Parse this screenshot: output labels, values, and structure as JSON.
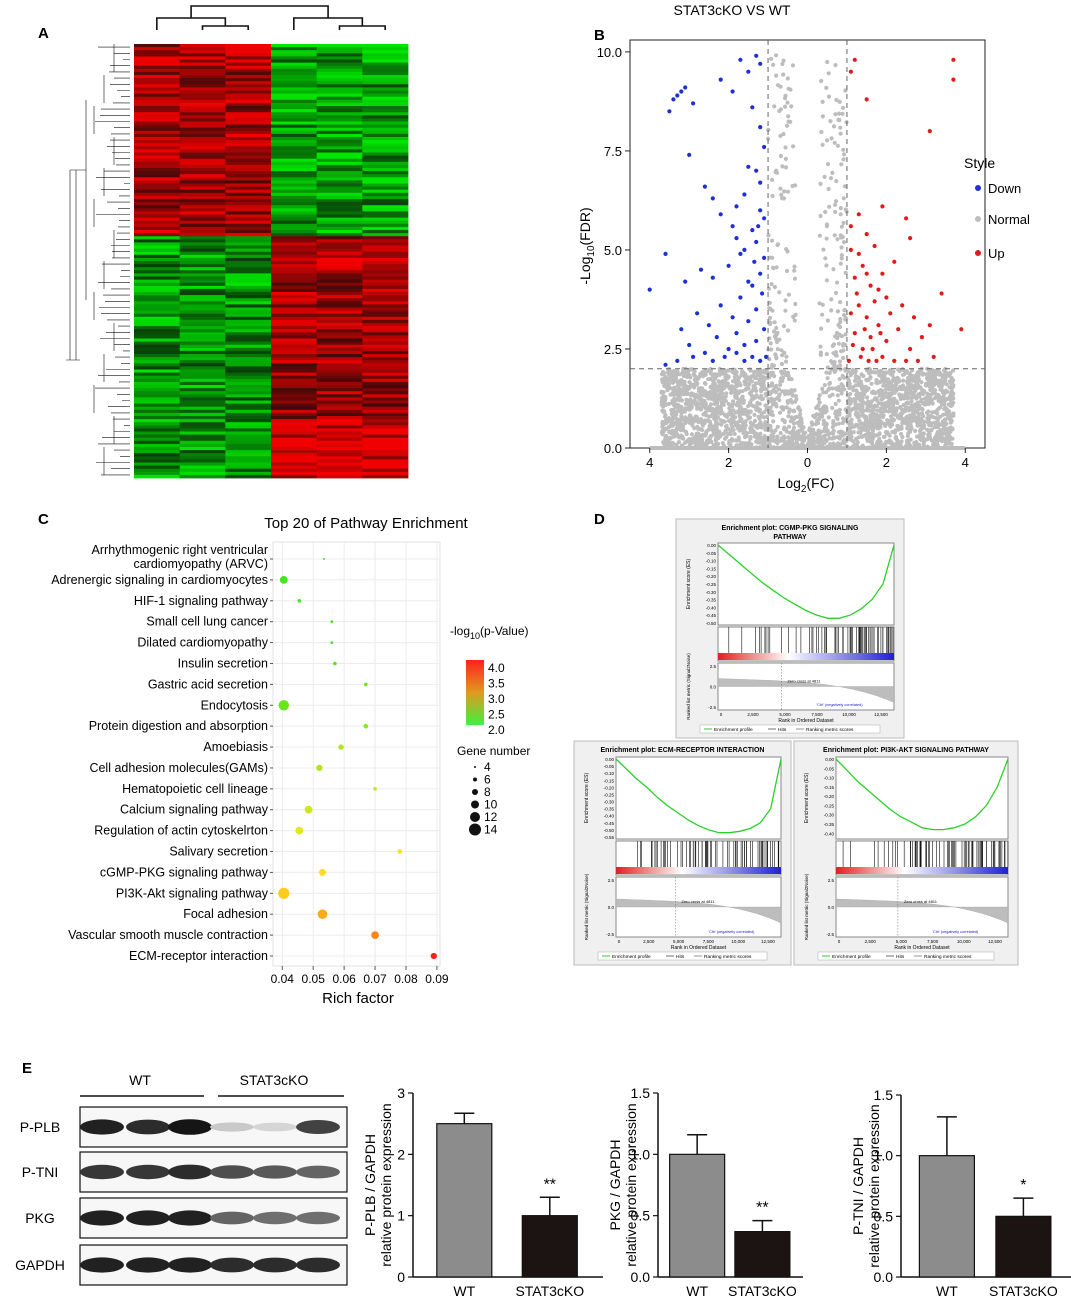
{
  "panel_letters": {
    "a": "A",
    "b": "B",
    "c": "C",
    "d": "D",
    "e": "E"
  },
  "colors": {
    "down": "#1f2fd6",
    "normal": "#bdbdbd",
    "up": "#e21a1a",
    "heat_red": "#e01414",
    "heat_green": "#1fd11f",
    "gsea_line": "#2ad02a",
    "wt_bar": "#8c8c8c",
    "ko_bar": "#1c1412"
  },
  "chart_data": [
    {
      "id": "heatmap",
      "type": "heatmap",
      "title": "",
      "columns": 6,
      "groups": [
        "cols 1-3",
        "cols 4-6"
      ],
      "description_values": "row-clustered expression blocks: upper block high in cols 1-3, lower block high in cols 4-6"
    },
    {
      "id": "volcano",
      "type": "scatter",
      "title": "STAT3cKO  VS  WT",
      "xlabel_main": "Log",
      "xlabel_sub": "2",
      "xlabel_end": "(FC)",
      "ylabel_main": "-Log",
      "ylabel_sub": "10",
      "ylabel_end": "(FDR)",
      "xlim": [
        -4.5,
        4.5
      ],
      "ylim": [
        0,
        10.3
      ],
      "x_ticks": [
        -4,
        -2,
        0,
        2,
        4
      ],
      "x_tick_labels": [
        "4",
        "2",
        "0",
        "2",
        "4"
      ],
      "y_ticks": [
        0,
        2.5,
        5,
        7.5,
        10
      ],
      "y_tick_labels": [
        "0.0",
        "2.5",
        "5.0",
        "7.5",
        "10.0"
      ],
      "fc_threshold": 1,
      "fdr_threshold": 2,
      "legend_title": "Style",
      "legend": [
        "Down",
        "Normal",
        "Up"
      ],
      "down_points": [
        [
          -3.4,
          8.8
        ],
        [
          -3.3,
          8.9
        ],
        [
          -3.2,
          9.0
        ],
        [
          -3.1,
          9.1
        ],
        [
          -2.9,
          8.7
        ],
        [
          -3.5,
          8.5
        ],
        [
          -1.7,
          9.8
        ],
        [
          -1.5,
          9.5
        ],
        [
          -1.3,
          9.9
        ],
        [
          -1.2,
          9.7
        ],
        [
          -2.2,
          9.3
        ],
        [
          -1.9,
          9.0
        ],
        [
          -3.0,
          7.4
        ],
        [
          -2.6,
          6.6
        ],
        [
          -2.4,
          6.3
        ],
        [
          -2.2,
          5.9
        ],
        [
          -1.8,
          6.1
        ],
        [
          -1.6,
          6.4
        ],
        [
          -1.5,
          7.1
        ],
        [
          -1.3,
          7.0
        ],
        [
          -1.2,
          6.7
        ],
        [
          -1.1,
          7.6
        ],
        [
          -1.4,
          8.6
        ],
        [
          -1.2,
          8.1
        ],
        [
          -3.6,
          4.9
        ],
        [
          -3.1,
          4.2
        ],
        [
          -2.7,
          4.5
        ],
        [
          -2.4,
          4.3
        ],
        [
          -2.0,
          4.6
        ],
        [
          -1.8,
          5.3
        ],
        [
          -1.6,
          5.0
        ],
        [
          -1.4,
          5.5
        ],
        [
          -1.3,
          5.2
        ],
        [
          -1.1,
          5.8
        ],
        [
          -1.2,
          6.0
        ],
        [
          -4.0,
          4.0
        ],
        [
          -3.2,
          3.0
        ],
        [
          -3.0,
          2.6
        ],
        [
          -2.8,
          3.4
        ],
        [
          -2.6,
          2.4
        ],
        [
          -2.5,
          3.1
        ],
        [
          -2.3,
          2.8
        ],
        [
          -2.2,
          3.6
        ],
        [
          -2.0,
          2.5
        ],
        [
          -1.9,
          3.3
        ],
        [
          -1.8,
          2.9
        ],
        [
          -1.7,
          3.8
        ],
        [
          -1.6,
          2.6
        ],
        [
          -1.5,
          3.2
        ],
        [
          -1.4,
          4.1
        ],
        [
          -1.3,
          2.7
        ],
        [
          -1.3,
          3.5
        ],
        [
          -1.2,
          4.4
        ],
        [
          -1.1,
          3.0
        ],
        [
          -1.05,
          2.3
        ],
        [
          -1.1,
          4.8
        ],
        [
          -1.2,
          2.2
        ],
        [
          -1.4,
          2.3
        ],
        [
          -1.6,
          2.2
        ],
        [
          -1.8,
          2.4
        ],
        [
          -2.1,
          2.3
        ],
        [
          -2.4,
          2.2
        ],
        [
          -2.9,
          2.3
        ],
        [
          -3.3,
          2.2
        ],
        [
          -3.6,
          2.1
        ],
        [
          -1.15,
          3.9
        ],
        [
          -1.25,
          5.6
        ],
        [
          -1.35,
          4.7
        ],
        [
          -1.5,
          4.2
        ],
        [
          -1.7,
          4.9
        ],
        [
          -1.9,
          5.6
        ]
      ],
      "up_points": [
        [
          3.7,
          9.8
        ],
        [
          3.7,
          9.3
        ],
        [
          3.1,
          8.0
        ],
        [
          1.2,
          9.8
        ],
        [
          1.1,
          9.5
        ],
        [
          1.5,
          8.8
        ],
        [
          1.9,
          6.1
        ],
        [
          2.5,
          5.8
        ],
        [
          2.6,
          5.3
        ],
        [
          1.1,
          5.6
        ],
        [
          1.3,
          5.9
        ],
        [
          1.5,
          5.4
        ],
        [
          1.7,
          5.1
        ],
        [
          2.2,
          4.7
        ],
        [
          1.9,
          4.4
        ],
        [
          1.6,
          4.1
        ],
        [
          1.4,
          4.6
        ],
        [
          1.2,
          4.3
        ],
        [
          1.1,
          5.0
        ],
        [
          3.4,
          3.9
        ],
        [
          2.4,
          3.6
        ],
        [
          2.7,
          3.3
        ],
        [
          3.1,
          3.1
        ],
        [
          2.9,
          2.8
        ],
        [
          2.6,
          2.5
        ],
        [
          3.9,
          3.0
        ],
        [
          2.3,
          3.0
        ],
        [
          2.1,
          3.4
        ],
        [
          2.0,
          2.7
        ],
        [
          1.9,
          2.3
        ],
        [
          1.8,
          3.1
        ],
        [
          1.7,
          3.7
        ],
        [
          1.6,
          2.8
        ],
        [
          1.5,
          3.3
        ],
        [
          1.4,
          2.5
        ],
        [
          1.3,
          3.6
        ],
        [
          1.2,
          2.9
        ],
        [
          1.1,
          3.4
        ],
        [
          1.05,
          2.2
        ],
        [
          1.15,
          2.6
        ],
        [
          1.25,
          3.9
        ],
        [
          1.35,
          2.3
        ],
        [
          1.45,
          3.0
        ],
        [
          1.55,
          2.2
        ],
        [
          1.65,
          2.5
        ],
        [
          1.75,
          2.2
        ],
        [
          1.85,
          2.9
        ],
        [
          2.2,
          2.2
        ],
        [
          2.5,
          2.2
        ],
        [
          2.8,
          2.2
        ],
        [
          3.2,
          2.3
        ],
        [
          1.3,
          4.9
        ],
        [
          1.5,
          4.4
        ],
        [
          1.8,
          4.0
        ],
        [
          2.0,
          3.8
        ]
      ]
    },
    {
      "id": "pathway",
      "type": "scatter",
      "title": "Top 20 of Pathway Enrichment",
      "xlabel": "Rich factor",
      "xlim": [
        0.037,
        0.091
      ],
      "x_ticks": [
        0.04,
        0.05,
        0.06,
        0.07,
        0.08,
        0.09
      ],
      "x_tick_labels": [
        "0.04",
        "0.05",
        "0.06",
        "0.07",
        "0.08",
        "0.09"
      ],
      "pathways": [
        {
          "line1": "Arrhythmogenic right ventricular",
          "line2": "cardiomyopathy (ARVC)",
          "x": 0.0535,
          "pval": 1.9,
          "genes": 3
        },
        {
          "line1": "Adrenergic signaling in cardiomyocytes",
          "line2": "",
          "x": 0.0405,
          "pval": 2.0,
          "genes": 10
        },
        {
          "line1": "HIF-1 signaling pathway",
          "line2": "",
          "x": 0.0455,
          "pval": 2.0,
          "genes": 5
        },
        {
          "line1": "Small cell lung cancer",
          "line2": "",
          "x": 0.056,
          "pval": 2.0,
          "genes": 4
        },
        {
          "line1": "Dilated cardiomyopathy",
          "line2": "",
          "x": 0.056,
          "pval": 2.0,
          "genes": 4
        },
        {
          "line1": "Insulin secretion",
          "line2": "",
          "x": 0.057,
          "pval": 2.1,
          "genes": 5
        },
        {
          "line1": "Gastric acid secretion",
          "line2": "",
          "x": 0.067,
          "pval": 2.2,
          "genes": 5
        },
        {
          "line1": "Endocytosis",
          "line2": "",
          "x": 0.0405,
          "pval": 2.2,
          "genes": 13
        },
        {
          "line1": "Protein digestion and absorption",
          "line2": "",
          "x": 0.067,
          "pval": 2.4,
          "genes": 6
        },
        {
          "line1": "Amoebiasis",
          "line2": "",
          "x": 0.059,
          "pval": 2.6,
          "genes": 7
        },
        {
          "line1": "Cell adhesion molecules(GAMs)",
          "line2": "",
          "x": 0.052,
          "pval": 2.6,
          "genes": 8
        },
        {
          "line1": "Hematopoietic cell lineage",
          "line2": "",
          "x": 0.07,
          "pval": 2.7,
          "genes": 5
        },
        {
          "line1": "Calcium signaling pathway",
          "line2": "",
          "x": 0.0485,
          "pval": 2.8,
          "genes": 10
        },
        {
          "line1": "Regulation of actin cytoskelrton",
          "line2": "",
          "x": 0.0455,
          "pval": 2.9,
          "genes": 10
        },
        {
          "line1": "Salivary secretion",
          "line2": "",
          "x": 0.078,
          "pval": 3.1,
          "genes": 6
        },
        {
          "line1": "cGMP-PKG signaling pathway",
          "line2": "",
          "x": 0.053,
          "pval": 3.1,
          "genes": 9
        },
        {
          "line1": "PI3K-Akt signaling pathway",
          "line2": "",
          "x": 0.0405,
          "pval": 3.2,
          "genes": 14
        },
        {
          "line1": "Focal adhesion",
          "line2": "",
          "x": 0.053,
          "pval": 3.4,
          "genes": 12
        },
        {
          "line1": "Vascular smooth muscle contraction",
          "line2": "",
          "x": 0.07,
          "pval": 3.6,
          "genes": 10
        },
        {
          "line1": "ECM-receptor interaction",
          "line2": "",
          "x": 0.089,
          "pval": 4.2,
          "genes": 8
        }
      ],
      "color_legend_title_main": "-log",
      "color_legend_title_sub": "10",
      "color_legend_title_end": "(p-Value)",
      "color_ticks": [
        "4.0",
        "3.5",
        "3.0",
        "2.5",
        "2.0"
      ],
      "size_legend_title": "Gene number",
      "size_ticks": [
        "4",
        "6",
        "8",
        "10",
        "12",
        "14"
      ]
    },
    {
      "id": "gsea",
      "type": "line",
      "plots": [
        {
          "title_line1": "Enrichment plot: CGMP-PKG SIGNALING",
          "title_line2": "PATHWAY",
          "es_ticks": [
            "0.00",
            "-0.05",
            "-0.10",
            "-0.15",
            "-0.20",
            "-0.25",
            "-0.30",
            "-0.35",
            "-0.40",
            "-0.45",
            "-0.50"
          ],
          "es_min": -0.5,
          "es_values": [
            0,
            -0.06,
            -0.12,
            -0.18,
            -0.24,
            -0.29,
            -0.34,
            -0.38,
            -0.42,
            -0.45,
            -0.47,
            -0.47,
            -0.45,
            -0.41,
            -0.35,
            -0.25,
            0
          ]
        },
        {
          "title_line1": "Enrichment plot: ECM-RECEPTOR INTERACTION",
          "title_line2": "",
          "es_ticks": [
            "0.00",
            "-0.05",
            "-0.10",
            "-0.15",
            "-0.20",
            "-0.25",
            "-0.30",
            "-0.35",
            "-0.40",
            "-0.45",
            "-0.50",
            "-0.55"
          ],
          "es_min": -0.55,
          "es_values": [
            0,
            -0.07,
            -0.14,
            -0.2,
            -0.27,
            -0.33,
            -0.38,
            -0.43,
            -0.47,
            -0.5,
            -0.52,
            -0.52,
            -0.51,
            -0.49,
            -0.45,
            -0.35,
            0
          ]
        },
        {
          "title_line1": "Enrichment plot: PI3K-AKT SIGNALING PATHWAY",
          "title_line2": "",
          "es_ticks": [
            "0.00",
            "-0.05",
            "-0.10",
            "-0.15",
            "-0.20",
            "-0.25",
            "-0.30",
            "-0.35",
            "-0.40"
          ],
          "es_min": -0.42,
          "es_values": [
            0,
            -0.06,
            -0.12,
            -0.17,
            -0.22,
            -0.27,
            -0.31,
            -0.34,
            -0.37,
            -0.38,
            -0.38,
            -0.37,
            -0.35,
            -0.31,
            -0.25,
            -0.15,
            0
          ]
        }
      ],
      "es_axis_label": "Enrichment score (ES)",
      "metric_axis_label": "Ranked list metric (Signal2Noise)",
      "metric_ticks": [
        "2.5",
        "0.0",
        "-2.5"
      ],
      "rank_ticks": [
        "0",
        "2,500",
        "5,000",
        "7,500",
        "10,000",
        "12,500"
      ],
      "rank_label": "Rank in Ordered Dataset",
      "zero_cross": "Zero cross at 4811",
      "pos_label": "'STAT3cKO' (positively correlated)",
      "neg_label": "'Ctrl' (negatively correlated)",
      "legend": [
        "Enrichment profile",
        "Hits",
        "Ranking metric scores"
      ]
    },
    {
      "id": "western",
      "type": "table",
      "groups": [
        "WT",
        "STAT3cKO"
      ],
      "rows": [
        "P-PLB",
        "P-TNI",
        "PKG",
        "GAPDH"
      ],
      "intensities": [
        [
          0.9,
          0.85,
          0.95,
          0.15,
          0.1,
          0.75
        ],
        [
          0.8,
          0.8,
          0.85,
          0.7,
          0.65,
          0.6
        ],
        [
          0.9,
          0.9,
          0.9,
          0.6,
          0.55,
          0.55
        ],
        [
          0.9,
          0.9,
          0.9,
          0.85,
          0.85,
          0.85
        ]
      ]
    },
    {
      "id": "bar_pplb",
      "type": "bar",
      "ylabel_line1": "P-PLB / GAPDH",
      "ylabel_line2": "relative protein expression",
      "categories": [
        "WT",
        "STAT3cKO"
      ],
      "values": [
        2.5,
        1.0
      ],
      "errors": [
        0.17,
        0.3
      ],
      "ylim": [
        0,
        3
      ],
      "y_ticks": [
        "0",
        "1",
        "2",
        "3"
      ],
      "significance": "**"
    },
    {
      "id": "bar_pkg",
      "type": "bar",
      "ylabel_line1": "PKG / GAPDH",
      "ylabel_line2": "relative protein expression",
      "categories": [
        "WT",
        "STAT3cKO"
      ],
      "values": [
        1.0,
        0.37
      ],
      "errors": [
        0.16,
        0.09
      ],
      "ylim": [
        0,
        1.5
      ],
      "y_ticks": [
        "0.0",
        "0.5",
        "1.0",
        "1.5"
      ],
      "significance": "**"
    },
    {
      "id": "bar_ptni",
      "type": "bar",
      "ylabel_line1": "P-TNI / GAPDH",
      "ylabel_line2": "relative protein expression",
      "categories": [
        "WT",
        "STAT3cKO"
      ],
      "values": [
        1.0,
        0.5
      ],
      "errors": [
        0.32,
        0.15
      ],
      "ylim": [
        0,
        1.5
      ],
      "y_ticks": [
        "0.0",
        "0.5",
        "1.0",
        "1.5"
      ],
      "significance": "*"
    }
  ]
}
